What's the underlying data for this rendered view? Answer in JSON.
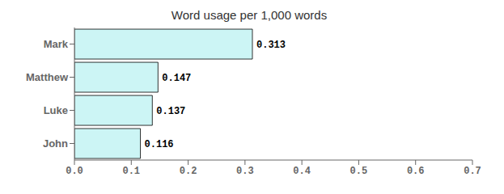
{
  "chart_data": {
    "type": "bar",
    "orientation": "horizontal",
    "title": "Word usage per 1,000 words",
    "categories": [
      "Mark",
      "Matthew",
      "Luke",
      "John"
    ],
    "values": [
      0.313,
      0.147,
      0.137,
      0.116
    ],
    "value_labels": [
      "0.313",
      "0.147",
      "0.137",
      "0.116"
    ],
    "data_labels": true,
    "color": "#ccf5f5",
    "xlim": [
      0.0,
      0.7
    ],
    "xticks": [
      {
        "value": 0.0,
        "label": "0.0"
      },
      0.1,
      0.2,
      0.3,
      0.4,
      0.5,
      0.6,
      0.7
    ],
    "grid": false
  }
}
